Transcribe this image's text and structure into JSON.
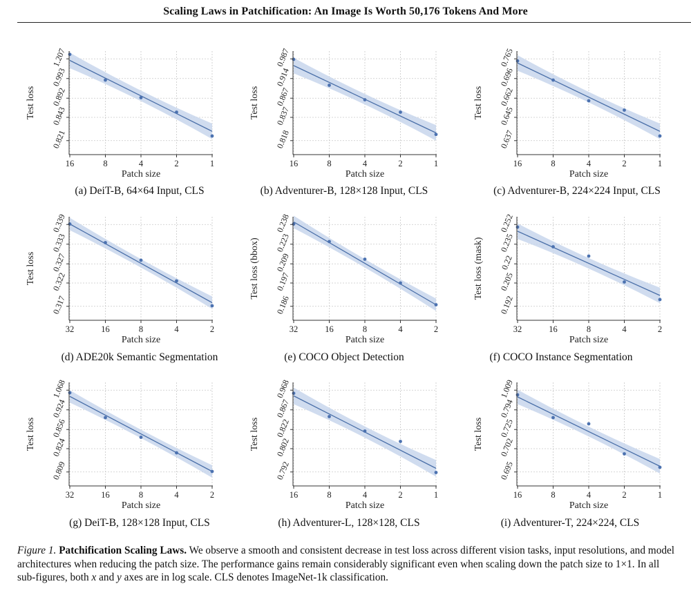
{
  "header": {
    "title": "Scaling Laws in Patchification: An Image Is Worth 50,176 Tokens And More"
  },
  "figure_caption": {
    "label": "Figure 1.",
    "title": "Patchification Scaling Laws.",
    "text_1": "We observe a smooth and consistent decrease in test loss across different vision tasks, input resolutions, and model architectures when reducing the patch size. The performance gains remain considerably significant even when scaling down the patch size to 1×1. In all sub-figures, both",
    "x_var": "x",
    "and_word": "and",
    "y_var": "y",
    "text_2": "axes are in log scale. CLS denotes ImageNet-1k classification."
  },
  "colors": {
    "line": "#4a6fa8",
    "band": "#c8d6ec",
    "point": "#4c72b0",
    "grid": "#c8c8c8"
  },
  "chart_data": [
    {
      "type": "scatter",
      "caption": "(a) DeiT-B, 64×64 Input, CLS",
      "xlabel": "Patch size",
      "ylabel": "Test loss",
      "x_ticks": [
        "16",
        "8",
        "4",
        "2",
        "1"
      ],
      "y_ticks": [
        "1.207",
        "0.993",
        "0.892",
        "0.843",
        "0.821"
      ],
      "point_y_norm": [
        0.968,
        0.72,
        0.55,
        0.41,
        0.18
      ],
      "fit_start": 0.91,
      "fit_end": 0.225,
      "band_width": 0.075
    },
    {
      "type": "scatter",
      "caption": "(b) Adventurer-B, 128×128 Input, CLS",
      "xlabel": "Patch size",
      "ylabel": "Test loss",
      "x_ticks": [
        "16",
        "8",
        "4",
        "2",
        "1"
      ],
      "y_ticks": [
        "0.987",
        "0.914",
        "0.867",
        "0.837",
        "0.818"
      ],
      "point_y_norm": [
        0.92,
        0.67,
        0.53,
        0.41,
        0.195
      ],
      "fit_start": 0.86,
      "fit_end": 0.21,
      "band_width": 0.075
    },
    {
      "type": "scatter",
      "caption": "(c) Adventurer-B, 224×224 Input, CLS",
      "xlabel": "Patch size",
      "ylabel": "Test loss",
      "x_ticks": [
        "16",
        "8",
        "4",
        "2",
        "1"
      ],
      "y_ticks": [
        "0.765",
        "0.696",
        "0.662",
        "0.645",
        "0.637"
      ],
      "point_y_norm": [
        0.905,
        0.72,
        0.52,
        0.43,
        0.18
      ],
      "fit_start": 0.885,
      "fit_end": 0.225,
      "band_width": 0.075
    },
    {
      "type": "scatter",
      "caption": "(d) ADE20k Semantic Segmentation",
      "xlabel": "Patch size",
      "ylabel": "Test loss",
      "x_ticks": [
        "32",
        "16",
        "8",
        "4",
        "2"
      ],
      "y_ticks": [
        "0.339",
        "0.333",
        "0.327",
        "0.322",
        "0.317"
      ],
      "point_y_norm": [
        0.93,
        0.75,
        0.58,
        0.38,
        0.14
      ],
      "fit_start": 0.93,
      "fit_end": 0.17,
      "band_width": 0.06
    },
    {
      "type": "scatter",
      "caption": "(e) COCO Object Detection",
      "xlabel": "Patch size",
      "ylabel": "Test loss (bbox)",
      "x_ticks": [
        "32",
        "16",
        "8",
        "4",
        "2"
      ],
      "y_ticks": [
        "0.238",
        "0.223",
        "0.209",
        "0.197",
        "0.186"
      ],
      "point_y_norm": [
        0.93,
        0.76,
        0.59,
        0.36,
        0.15
      ],
      "fit_start": 0.95,
      "fit_end": 0.15,
      "band_width": 0.06
    },
    {
      "type": "scatter",
      "caption": "(f) COCO Instance Segmentation",
      "xlabel": "Patch size",
      "ylabel": "Test loss (mask)",
      "x_ticks": [
        "32",
        "16",
        "8",
        "4",
        "2"
      ],
      "y_ticks": [
        "0.252",
        "0.235",
        "0.22",
        "0.205",
        "0.192"
      ],
      "point_y_norm": [
        0.9,
        0.71,
        0.62,
        0.37,
        0.2
      ],
      "fit_start": 0.86,
      "fit_end": 0.24,
      "band_width": 0.075
    },
    {
      "type": "scatter",
      "caption": "(g) DeiT-B, 128×128 Input, CLS",
      "xlabel": "Patch size",
      "ylabel": "Test loss",
      "x_ticks": [
        "32",
        "16",
        "8",
        "4",
        "2"
      ],
      "y_ticks": [
        "1.068",
        "0.924",
        "0.856",
        "0.824",
        "0.809"
      ],
      "point_y_norm": [
        0.9,
        0.66,
        0.47,
        0.32,
        0.14
      ],
      "fit_start": 0.865,
      "fit_end": 0.14,
      "band_width": 0.06
    },
    {
      "type": "scatter",
      "caption": "(h) Adventurer-L, 128×128, CLS",
      "xlabel": "Patch size",
      "ylabel": "Test loss",
      "x_ticks": [
        "16",
        "8",
        "4",
        "2",
        "1"
      ],
      "y_ticks": [
        "0.968",
        "0.867",
        "0.822",
        "0.802",
        "0.792"
      ],
      "point_y_norm": [
        0.895,
        0.67,
        0.53,
        0.43,
        0.13
      ],
      "fit_start": 0.87,
      "fit_end": 0.17,
      "band_width": 0.08
    },
    {
      "type": "scatter",
      "caption": "(i) Adventurer-T, 224×224, CLS",
      "xlabel": "Patch size",
      "ylabel": "Test loss",
      "x_ticks": [
        "16",
        "8",
        "4",
        "2",
        "1"
      ],
      "y_ticks": [
        "1.009",
        "0.794",
        "0.725",
        "0.702",
        "0.695"
      ],
      "point_y_norm": [
        0.88,
        0.66,
        0.6,
        0.31,
        0.18
      ],
      "fit_start": 0.86,
      "fit_end": 0.19,
      "band_width": 0.07
    }
  ]
}
